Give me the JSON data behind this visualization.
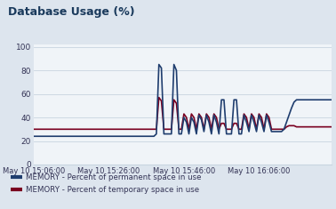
{
  "title": "Database Usage (%)",
  "title_fontsize": 9,
  "title_fontweight": "bold",
  "title_color": "#1a3a5c",
  "background_color": "#dde5ee",
  "plot_bg_color": "#f0f4f8",
  "title_bg_color": "#dce4ed",
  "ylabel_ticks": [
    0,
    20,
    40,
    60,
    80,
    100
  ],
  "xtick_labels": [
    "May 10 15:06:00",
    "May 10 15:26:00",
    "May 10 15:46:00",
    "May 10 16:06:00"
  ],
  "legend1_label": "MEMORY - Percent of permanent space in use",
  "legend2_label": "MEMORY - Percent of temporary space in use",
  "line1_color": "#1f3d6e",
  "line2_color": "#7a0020",
  "grid_color": "#c8d4e0",
  "perm_data": [
    24,
    24,
    24,
    24,
    24,
    24,
    24,
    24,
    24,
    24,
    24,
    24,
    24,
    24,
    24,
    24,
    24,
    24,
    24,
    24,
    24,
    24,
    24,
    24,
    24,
    24,
    24,
    24,
    24,
    24,
    24,
    24,
    24,
    24,
    24,
    24,
    24,
    24,
    24,
    24,
    24,
    24,
    24,
    24,
    24,
    24,
    24,
    24,
    24,
    26,
    85,
    82,
    26,
    26,
    26,
    26,
    85,
    80,
    26,
    26,
    40,
    36,
    26,
    40,
    36,
    26,
    42,
    38,
    28,
    42,
    36,
    26,
    42,
    36,
    26,
    55,
    55,
    26,
    26,
    26,
    55,
    55,
    26,
    26,
    42,
    36,
    28,
    42,
    36,
    28,
    42,
    36,
    28,
    42,
    36,
    28,
    28,
    28,
    28,
    28,
    30,
    36,
    42,
    48,
    53,
    55,
    55,
    55,
    55,
    55,
    55,
    55,
    55,
    55,
    55,
    55,
    55,
    55,
    55,
    55
  ],
  "temp_data": [
    30,
    30,
    30,
    30,
    30,
    30,
    30,
    30,
    30,
    30,
    30,
    30,
    30,
    30,
    30,
    30,
    30,
    30,
    30,
    30,
    30,
    30,
    30,
    30,
    30,
    30,
    30,
    30,
    30,
    30,
    30,
    30,
    30,
    30,
    30,
    30,
    30,
    30,
    30,
    30,
    30,
    30,
    30,
    30,
    30,
    30,
    30,
    30,
    30,
    30,
    57,
    54,
    30,
    30,
    30,
    30,
    55,
    52,
    30,
    30,
    43,
    40,
    30,
    43,
    40,
    30,
    43,
    40,
    30,
    43,
    40,
    30,
    43,
    40,
    30,
    35,
    35,
    30,
    30,
    30,
    35,
    35,
    30,
    30,
    43,
    40,
    30,
    43,
    40,
    30,
    43,
    40,
    30,
    43,
    40,
    30,
    30,
    30,
    30,
    30,
    30,
    32,
    33,
    33,
    33,
    32,
    32,
    32,
    32,
    32,
    32,
    32,
    32,
    32,
    32,
    32,
    32,
    32,
    32,
    32
  ]
}
